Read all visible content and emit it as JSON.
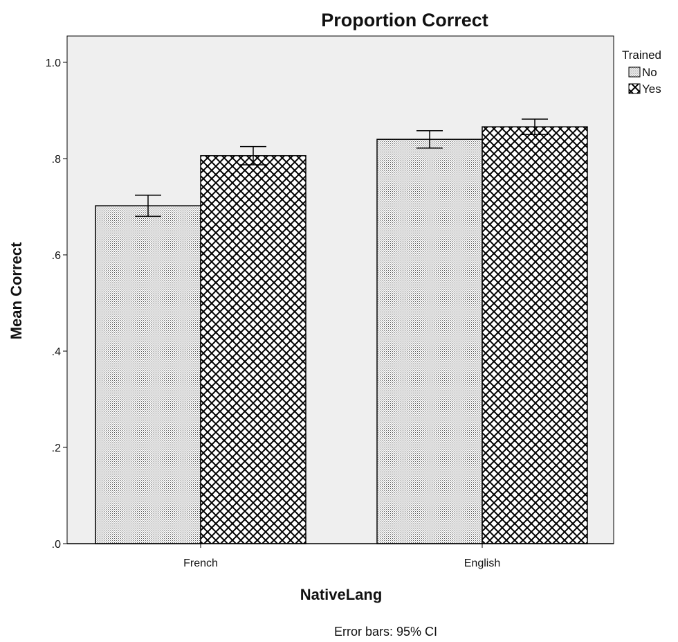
{
  "chart_data": {
    "type": "bar",
    "title": "Proportion Correct",
    "xlabel": "NativeLang",
    "ylabel": "Mean Correct",
    "categories": [
      "French",
      "English"
    ],
    "ylim": [
      0,
      1.0
    ],
    "yticks": [
      0.0,
      0.2,
      0.4,
      0.6,
      0.8,
      1.0
    ],
    "ytick_labels": [
      ".0",
      ".2",
      ".4",
      ".6",
      ".8",
      "1.0"
    ],
    "legend_title": "Trained",
    "legend_position": "top-right, outside plot",
    "series": [
      {
        "name": "No",
        "pattern": "fine-dots",
        "values": [
          0.702,
          0.84
        ],
        "ci_low": [
          0.68,
          0.822
        ],
        "ci_high": [
          0.724,
          0.858
        ]
      },
      {
        "name": "Yes",
        "pattern": "crosshatch",
        "values": [
          0.806,
          0.866
        ],
        "ci_low": [
          0.787,
          0.85
        ],
        "ci_high": [
          0.825,
          0.882
        ]
      }
    ],
    "note": "Error bars: 95% CI",
    "colors": {
      "plot_background": "#efefef",
      "bar_outline": "#000000"
    }
  }
}
